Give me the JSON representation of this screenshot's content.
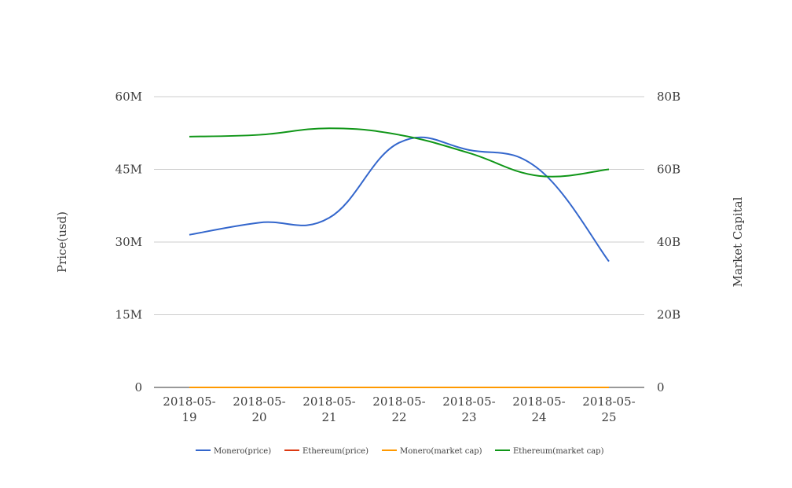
{
  "chart_data": {
    "type": "line",
    "x": [
      "2018-05-19",
      "2018-05-20",
      "2018-05-21",
      "2018-05-22",
      "2018-05-23",
      "2018-05-24",
      "2018-05-25"
    ],
    "x_tick_labels": [
      [
        "2018-05-",
        "19"
      ],
      [
        "2018-05-",
        "20"
      ],
      [
        "2018-05-",
        "21"
      ],
      [
        "2018-05-",
        "22"
      ],
      [
        "2018-05-",
        "23"
      ],
      [
        "2018-05-",
        "24"
      ],
      [
        "2018-05-",
        "25"
      ]
    ],
    "ylabel_left": "Price(usd)",
    "ylabel_right": "Market Capital",
    "ylim_left": [
      0,
      60000000
    ],
    "ylim_right": [
      0,
      80000000000
    ],
    "y_ticks_left": [
      "0",
      "15M",
      "30M",
      "45M",
      "60M"
    ],
    "y_ticks_right": [
      "0",
      "20B",
      "40B",
      "60B",
      "80B"
    ],
    "grid": true,
    "legend_position": "bottom",
    "series": [
      {
        "name": "Monero(price)",
        "axis": "left",
        "color": "#3366cc",
        "values": [
          31500000,
          34000000,
          35000000,
          50500000,
          49000000,
          45000000,
          26000000
        ]
      },
      {
        "name": "Ethereum(price)",
        "axis": "left",
        "color": "#dc3912",
        "values": [
          0,
          0,
          0,
          0,
          0,
          0,
          0
        ]
      },
      {
        "name": "Monero(market cap)",
        "axis": "right",
        "color": "#ff9900",
        "values": [
          0,
          0,
          0,
          0,
          0,
          0,
          0
        ]
      },
      {
        "name": "Ethereum(market cap)",
        "axis": "right",
        "color": "#109618",
        "values": [
          69000000000,
          69500000000,
          71300000000,
          69500000000,
          64500000000,
          58200000000,
          60000000000
        ]
      }
    ]
  }
}
